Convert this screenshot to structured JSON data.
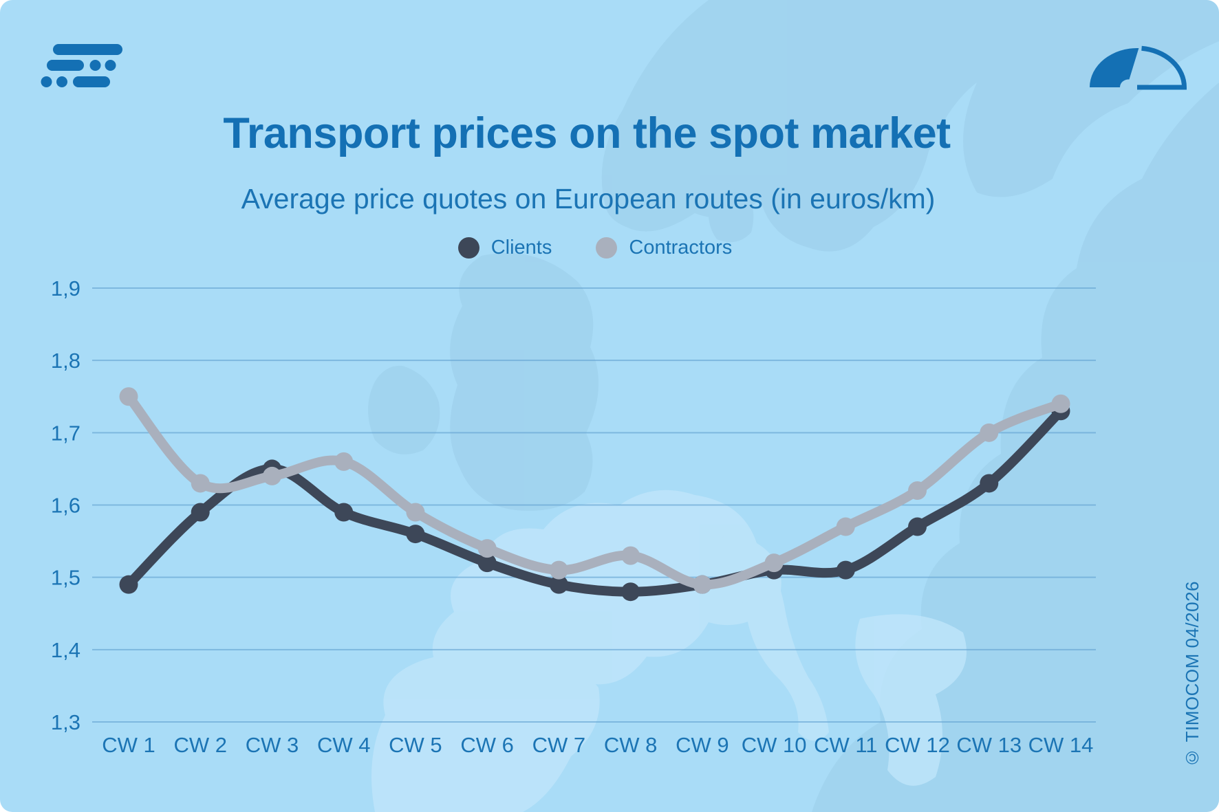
{
  "page": {
    "background_color": "#a9dcf7",
    "accent_blue": "#1470b4",
    "copyright": "© TIMOCOM 04/2026"
  },
  "header": {
    "title": "Transport prices on the spot market",
    "subtitle": "Average price quotes on European routes (in euros/km)"
  },
  "legend": [
    {
      "label": "Clients",
      "color": "#3d4758"
    },
    {
      "label": "Contractors",
      "color": "#a9b0bd"
    }
  ],
  "chart_data": {
    "type": "line",
    "title": "Transport prices on the spot market",
    "subtitle": "Average price quotes on European routes (in euros/km)",
    "categories": [
      "CW 1",
      "CW 2",
      "CW 3",
      "CW 4",
      "CW 5",
      "CW 6",
      "CW 7",
      "CW 8",
      "CW 9",
      "CW 10",
      "CW 11",
      "CW 12",
      "CW 13",
      "CW 14"
    ],
    "series": [
      {
        "name": "Clients",
        "color": "#3d4758",
        "values": [
          1.49,
          1.59,
          1.65,
          1.59,
          1.56,
          1.52,
          1.49,
          1.48,
          1.49,
          1.51,
          1.51,
          1.57,
          1.63,
          1.73
        ]
      },
      {
        "name": "Contractors",
        "color": "#a9b0bd",
        "values": [
          1.75,
          1.63,
          1.64,
          1.66,
          1.59,
          1.54,
          1.51,
          1.53,
          1.49,
          1.52,
          1.57,
          1.62,
          1.7,
          1.74
        ]
      }
    ],
    "y_ticks": [
      "1,9",
      "1,8",
      "1,7",
      "1,6",
      "1,5",
      "1,4",
      "1,3"
    ],
    "y_tick_values": [
      1.9,
      1.8,
      1.7,
      1.6,
      1.5,
      1.4,
      1.3
    ],
    "ylim": [
      1.3,
      1.9
    ],
    "grid": true,
    "legend_position": "top",
    "gridline_color": "#66a5d3",
    "label_color": "#1b74b4",
    "units": "euros/km"
  }
}
